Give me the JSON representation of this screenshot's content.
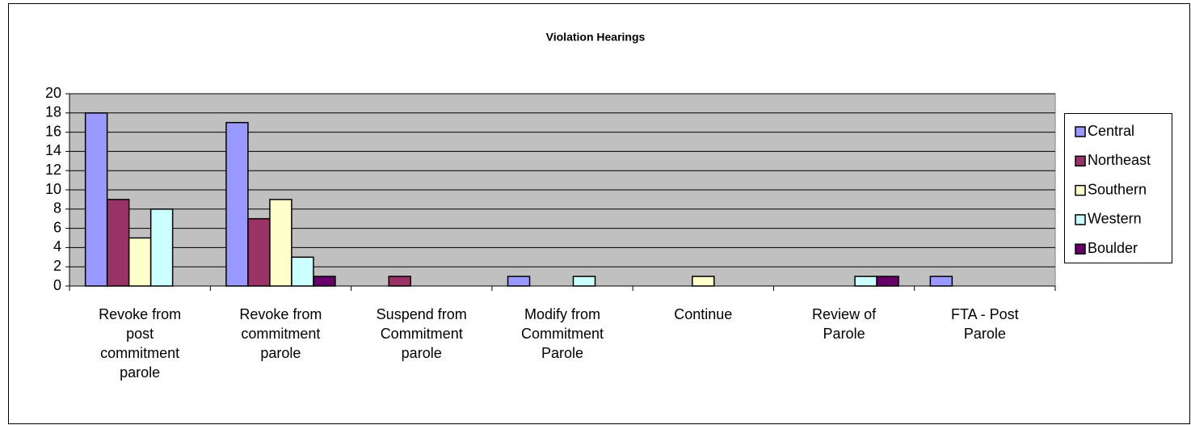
{
  "chart_data": {
    "type": "bar",
    "title": "Violation Hearings",
    "categories": [
      "Revoke from post commitment parole",
      "Revoke from commitment parole",
      "Suspend from Commitment parole",
      "Modify from Commitment Parole",
      "Continue",
      "Review of Parole",
      "FTA - Post Parole"
    ],
    "series": [
      {
        "name": "Central",
        "color": "#9999ff",
        "values": [
          18,
          17,
          0,
          1,
          0,
          0,
          1
        ]
      },
      {
        "name": "Northeast",
        "color": "#993366",
        "values": [
          9,
          7,
          1,
          0,
          0,
          0,
          0
        ]
      },
      {
        "name": "Southern",
        "color": "#ffffcc",
        "values": [
          5,
          9,
          0,
          0,
          1,
          0,
          0
        ]
      },
      {
        "name": "Western",
        "color": "#ccffff",
        "values": [
          8,
          3,
          0,
          1,
          0,
          1,
          0
        ]
      },
      {
        "name": "Boulder",
        "color": "#660066",
        "values": [
          0,
          1,
          0,
          0,
          0,
          1,
          0
        ]
      }
    ],
    "ylim": [
      0,
      20
    ],
    "yticks": [
      0,
      2,
      4,
      6,
      8,
      10,
      12,
      14,
      16,
      18,
      20
    ],
    "grid": true,
    "legend": "right"
  }
}
